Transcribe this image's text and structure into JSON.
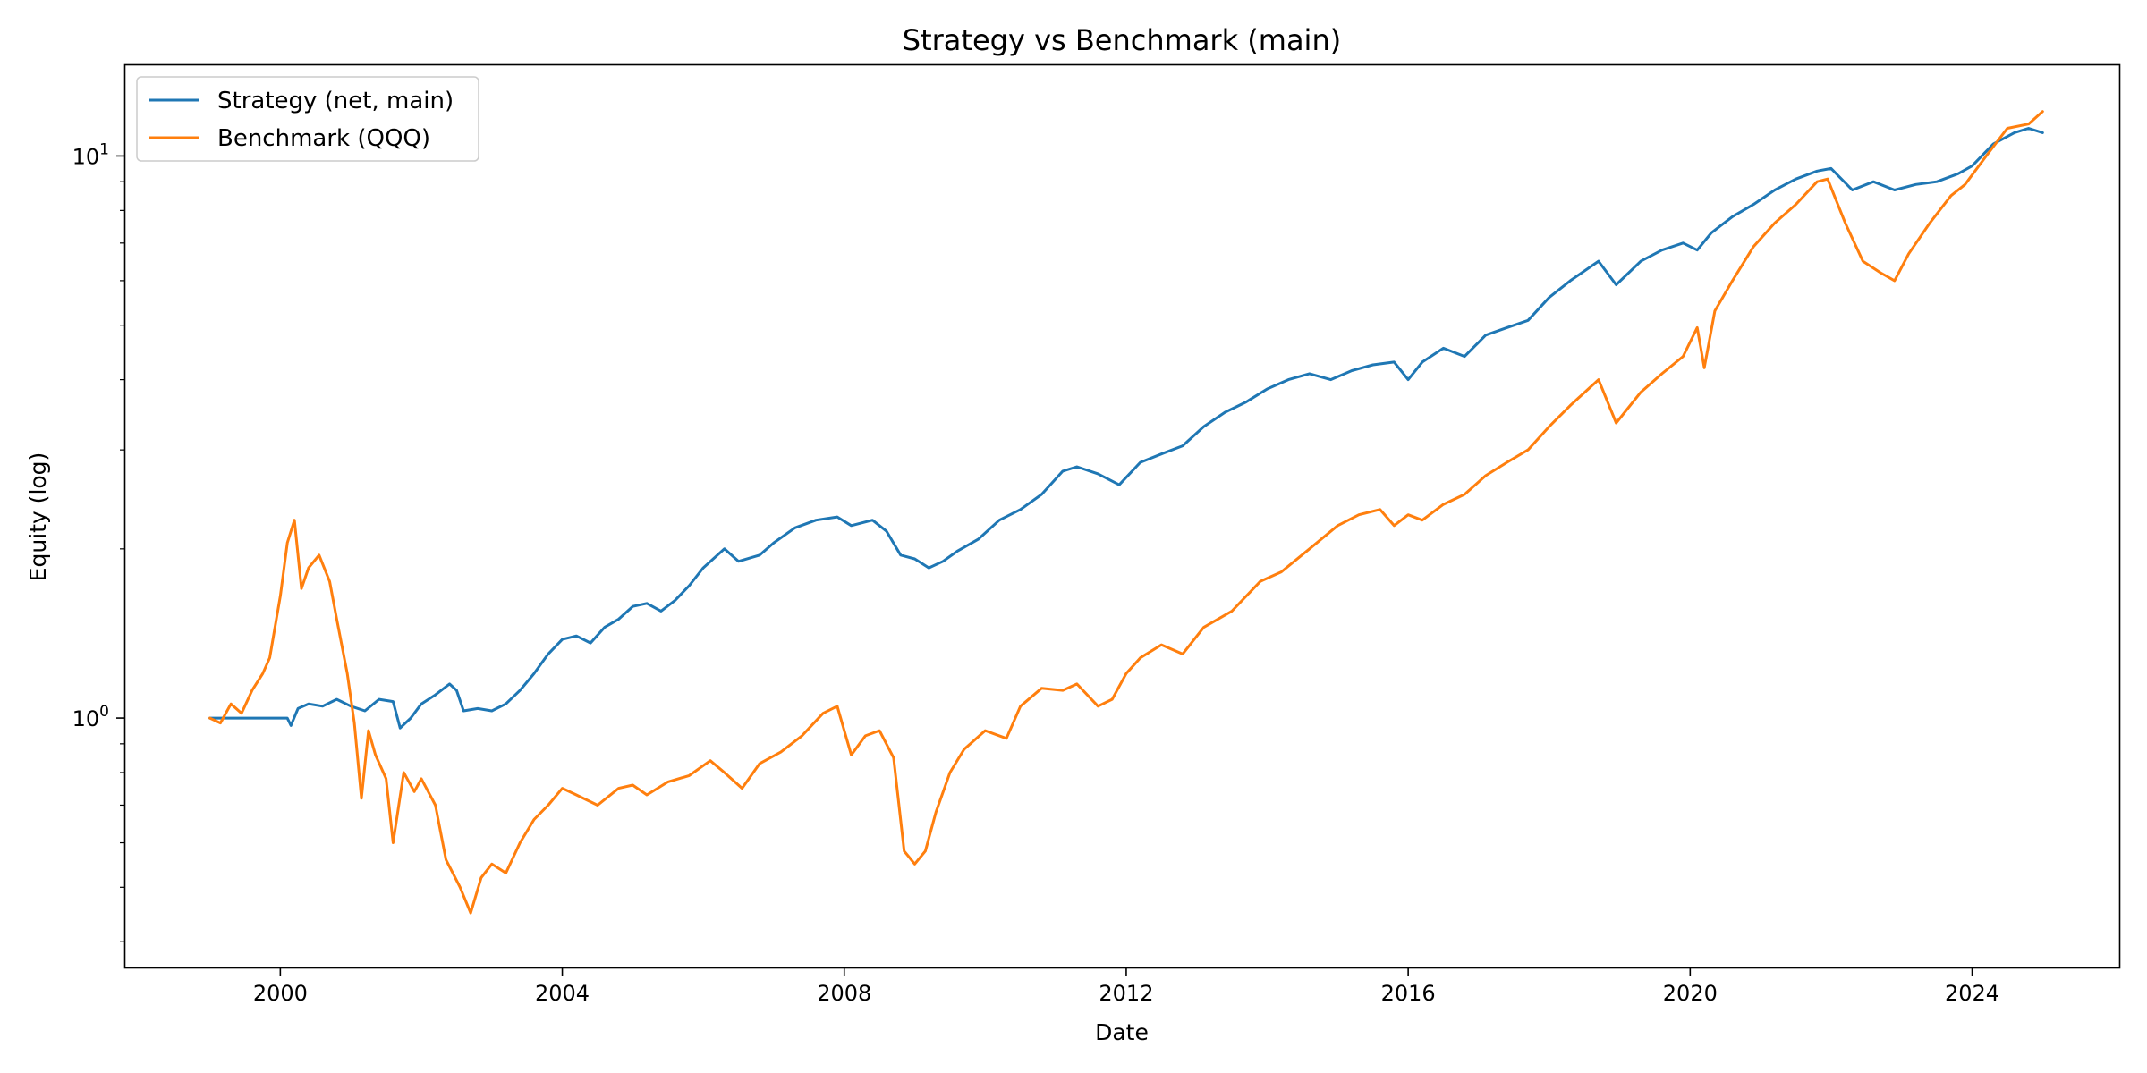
{
  "chart_data": {
    "type": "line",
    "title": "Strategy vs Benchmark (main)",
    "xlabel": "Date",
    "ylabel": "Equity (log)",
    "yscale": "log",
    "xlim": [
      1997.8,
      2026.1
    ],
    "ylim": [
      0.36,
      14.5
    ],
    "grid": false,
    "legend_position": "upper-left",
    "x_ticks": [
      2000,
      2004,
      2008,
      2012,
      2016,
      2020,
      2024
    ],
    "x_tick_labels": [
      "2000",
      "2004",
      "2008",
      "2012",
      "2016",
      "2020",
      "2024"
    ],
    "y_major_ticks": [
      1,
      10
    ],
    "y_tick_labels": [
      {
        "base": "10",
        "exp": "0"
      },
      {
        "base": "10",
        "exp": "1"
      }
    ],
    "y_minor_ticks": [
      0.4,
      0.5,
      0.6,
      0.7,
      0.8,
      0.9,
      2,
      3,
      4,
      5,
      6,
      7,
      8,
      9
    ],
    "series": [
      {
        "name": "Strategy (net, main)",
        "color": "#1f77b4",
        "x": [
          1999.0,
          2000.1,
          2000.15,
          2000.25,
          2000.4,
          2000.6,
          2000.8,
          2001.0,
          2001.2,
          2001.4,
          2001.6,
          2001.7,
          2001.85,
          2002.0,
          2002.2,
          2002.4,
          2002.5,
          2002.6,
          2002.8,
          2003.0,
          2003.2,
          2003.4,
          2003.6,
          2003.8,
          2004.0,
          2004.2,
          2004.4,
          2004.6,
          2004.8,
          2005.0,
          2005.2,
          2005.4,
          2005.6,
          2005.8,
          2006.0,
          2006.3,
          2006.5,
          2006.8,
          2007.0,
          2007.3,
          2007.6,
          2007.9,
          2008.1,
          2008.4,
          2008.6,
          2008.8,
          2009.0,
          2009.2,
          2009.4,
          2009.6,
          2009.9,
          2010.2,
          2010.5,
          2010.8,
          2011.1,
          2011.3,
          2011.6,
          2011.9,
          2012.2,
          2012.5,
          2012.8,
          2013.1,
          2013.4,
          2013.7,
          2014.0,
          2014.3,
          2014.6,
          2014.9,
          2015.2,
          2015.5,
          2015.8,
          2016.0,
          2016.2,
          2016.5,
          2016.8,
          2017.1,
          2017.4,
          2017.7,
          2018.0,
          2018.3,
          2018.7,
          2018.95,
          2019.3,
          2019.6,
          2019.9,
          2020.1,
          2020.3,
          2020.6,
          2020.9,
          2021.2,
          2021.5,
          2021.8,
          2022.0,
          2022.3,
          2022.6,
          2022.9,
          2023.2,
          2023.5,
          2023.8,
          2024.0,
          2024.3,
          2024.6,
          2024.8,
          2025.0
        ],
        "y": [
          1.0,
          1.0,
          0.97,
          1.04,
          1.06,
          1.05,
          1.08,
          1.05,
          1.03,
          1.08,
          1.07,
          0.96,
          1.0,
          1.06,
          1.1,
          1.15,
          1.12,
          1.03,
          1.04,
          1.03,
          1.06,
          1.12,
          1.2,
          1.3,
          1.38,
          1.4,
          1.36,
          1.45,
          1.5,
          1.58,
          1.6,
          1.55,
          1.62,
          1.72,
          1.85,
          2.0,
          1.9,
          1.95,
          2.05,
          2.18,
          2.25,
          2.28,
          2.2,
          2.25,
          2.15,
          1.95,
          1.92,
          1.85,
          1.9,
          1.98,
          2.08,
          2.25,
          2.35,
          2.5,
          2.75,
          2.8,
          2.72,
          2.6,
          2.85,
          2.95,
          3.05,
          3.3,
          3.5,
          3.65,
          3.85,
          4.0,
          4.1,
          4.0,
          4.15,
          4.25,
          4.3,
          4.0,
          4.3,
          4.55,
          4.4,
          4.8,
          4.95,
          5.1,
          5.6,
          6.0,
          6.5,
          5.9,
          6.5,
          6.8,
          7.0,
          6.8,
          7.3,
          7.8,
          8.2,
          8.7,
          9.1,
          9.4,
          9.5,
          8.7,
          9.0,
          8.7,
          8.9,
          9.0,
          9.3,
          9.6,
          10.5,
          11.0,
          11.2,
          11.0
        ]
      },
      {
        "name": "Benchmark (QQQ)",
        "color": "#ff7f0e",
        "x": [
          1999.0,
          1999.15,
          1999.3,
          1999.45,
          1999.6,
          1999.75,
          1999.85,
          2000.0,
          2000.1,
          2000.2,
          2000.3,
          2000.4,
          2000.55,
          2000.7,
          2000.8,
          2000.95,
          2001.05,
          2001.15,
          2001.25,
          2001.35,
          2001.5,
          2001.6,
          2001.75,
          2001.9,
          2002.0,
          2002.2,
          2002.35,
          2002.55,
          2002.7,
          2002.85,
          2003.0,
          2003.2,
          2003.4,
          2003.6,
          2003.8,
          2004.0,
          2004.2,
          2004.5,
          2004.8,
          2005.0,
          2005.2,
          2005.5,
          2005.8,
          2006.1,
          2006.3,
          2006.55,
          2006.8,
          2007.1,
          2007.4,
          2007.7,
          2007.9,
          2008.1,
          2008.3,
          2008.5,
          2008.7,
          2008.85,
          2009.0,
          2009.15,
          2009.3,
          2009.5,
          2009.7,
          2010.0,
          2010.3,
          2010.5,
          2010.8,
          2011.1,
          2011.3,
          2011.6,
          2011.8,
          2012.0,
          2012.2,
          2012.5,
          2012.8,
          2013.1,
          2013.5,
          2013.9,
          2014.2,
          2014.6,
          2015.0,
          2015.3,
          2015.6,
          2015.8,
          2016.0,
          2016.2,
          2016.5,
          2016.8,
          2017.1,
          2017.4,
          2017.7,
          2018.0,
          2018.3,
          2018.7,
          2018.95,
          2019.3,
          2019.6,
          2019.9,
          2020.1,
          2020.2,
          2020.35,
          2020.6,
          2020.9,
          2021.2,
          2021.5,
          2021.8,
          2021.95,
          2022.2,
          2022.45,
          2022.7,
          2022.9,
          2023.1,
          2023.4,
          2023.7,
          2023.9,
          2024.2,
          2024.5,
          2024.8,
          2025.0
        ],
        "y": [
          1.0,
          0.98,
          1.06,
          1.02,
          1.12,
          1.2,
          1.28,
          1.65,
          2.05,
          2.25,
          1.7,
          1.85,
          1.95,
          1.75,
          1.5,
          1.2,
          0.98,
          0.72,
          0.95,
          0.86,
          0.78,
          0.6,
          0.8,
          0.74,
          0.78,
          0.7,
          0.56,
          0.5,
          0.45,
          0.52,
          0.55,
          0.53,
          0.6,
          0.66,
          0.7,
          0.75,
          0.73,
          0.7,
          0.75,
          0.76,
          0.73,
          0.77,
          0.79,
          0.84,
          0.8,
          0.75,
          0.83,
          0.87,
          0.93,
          1.02,
          1.05,
          0.86,
          0.93,
          0.95,
          0.85,
          0.58,
          0.55,
          0.58,
          0.68,
          0.8,
          0.88,
          0.95,
          0.92,
          1.05,
          1.13,
          1.12,
          1.15,
          1.05,
          1.08,
          1.2,
          1.28,
          1.35,
          1.3,
          1.45,
          1.55,
          1.75,
          1.82,
          2.0,
          2.2,
          2.3,
          2.35,
          2.2,
          2.3,
          2.25,
          2.4,
          2.5,
          2.7,
          2.85,
          3.0,
          3.3,
          3.6,
          4.0,
          3.35,
          3.8,
          4.1,
          4.4,
          4.95,
          4.2,
          5.3,
          6.0,
          6.9,
          7.6,
          8.2,
          9.0,
          9.1,
          7.6,
          6.5,
          6.2,
          6.0,
          6.7,
          7.6,
          8.5,
          8.9,
          10.0,
          11.2,
          11.4,
          12.0
        ]
      }
    ]
  }
}
